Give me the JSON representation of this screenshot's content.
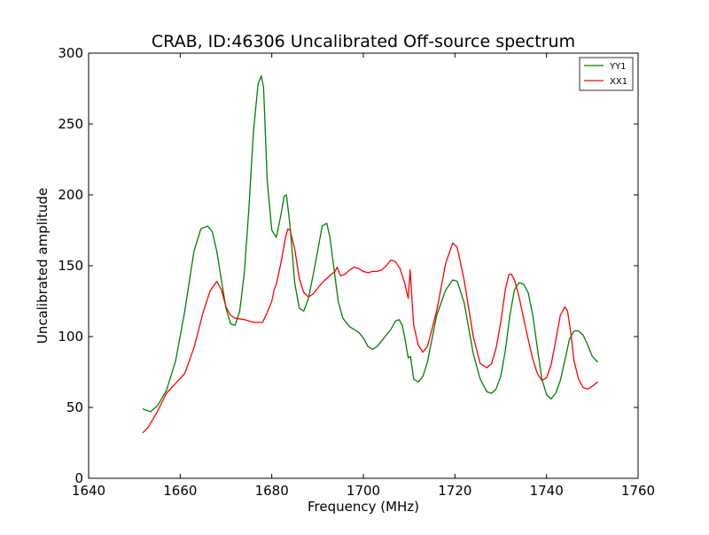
{
  "chart_data": {
    "type": "line",
    "title": "CRAB, ID:46306 Uncalibrated Off-source spectrum",
    "xlabel": "Frequency (MHz)",
    "ylabel": "Uncalibrated amplitude",
    "xlim": [
      1640,
      1760
    ],
    "ylim": [
      0,
      300
    ],
    "xticks": [
      1640,
      1660,
      1680,
      1700,
      1720,
      1740,
      1760
    ],
    "yticks": [
      0,
      50,
      100,
      150,
      200,
      250,
      300
    ],
    "grid": false,
    "legend_placement": "top-right",
    "series": [
      {
        "name": "YY1",
        "color": "#008000",
        "x": [
          1651.8,
          1653.5,
          1655,
          1657,
          1659,
          1661,
          1663,
          1664.5,
          1666,
          1667,
          1668,
          1669,
          1670,
          1671,
          1672,
          1673,
          1674,
          1675,
          1676,
          1677,
          1677.7,
          1678.2,
          1679,
          1680,
          1681,
          1682,
          1682.7,
          1683.2,
          1684,
          1685,
          1686,
          1687,
          1688,
          1689,
          1690,
          1691,
          1692,
          1692.7,
          1693.5,
          1694.5,
          1695.5,
          1697,
          1699,
          1700,
          1701,
          1702,
          1703,
          1704,
          1705,
          1706,
          1707,
          1707.8,
          1708.5,
          1709,
          1709.8,
          1710.3,
          1711,
          1712,
          1713,
          1714,
          1716,
          1718,
          1719.5,
          1720.5,
          1722,
          1724,
          1725.5,
          1727,
          1728,
          1729,
          1730,
          1731,
          1732,
          1733,
          1734,
          1735,
          1736,
          1737,
          1738,
          1739,
          1740,
          1741,
          1742,
          1743,
          1744,
          1745,
          1746,
          1747,
          1748,
          1749,
          1750,
          1751.2
        ],
        "y": [
          49,
          47,
          51,
          62,
          83,
          118,
          160,
          176,
          178,
          174,
          160,
          140,
          120,
          109,
          108,
          118,
          145,
          190,
          245,
          278,
          284,
          276,
          210,
          175,
          170,
          186,
          199,
          200,
          178,
          138,
          120,
          118,
          127,
          143,
          160,
          178,
          180,
          170,
          150,
          125,
          113,
          107,
          103,
          99,
          93,
          91,
          93,
          97,
          101,
          105,
          111,
          112,
          108,
          100,
          85,
          86,
          70,
          68,
          72,
          82,
          115,
          133,
          140,
          139,
          124,
          88,
          70,
          61,
          60,
          63,
          72,
          90,
          115,
          133,
          138,
          137,
          131,
          115,
          92,
          70,
          59,
          56,
          60,
          69,
          83,
          98,
          104,
          104,
          101,
          94,
          86,
          82
        ]
      },
      {
        "name": "XX1",
        "color": "#ff0000",
        "x": [
          1651.8,
          1653,
          1655,
          1657,
          1659,
          1661,
          1663,
          1665,
          1666.5,
          1668,
          1669,
          1670,
          1671,
          1672,
          1674,
          1676,
          1678,
          1679,
          1680,
          1680.5,
          1681,
          1682,
          1683,
          1683.5,
          1684,
          1685,
          1686,
          1687,
          1688,
          1689,
          1690,
          1691,
          1692,
          1693,
          1693.8,
          1694.3,
          1695,
          1696,
          1697,
          1698,
          1699,
          1700,
          1701,
          1702,
          1703,
          1704,
          1705,
          1706,
          1707,
          1708,
          1709,
          1709.8,
          1710.2,
          1711,
          1712,
          1713,
          1714,
          1716,
          1718,
          1719.5,
          1720.5,
          1722,
          1724,
          1725.5,
          1727,
          1728,
          1729,
          1730,
          1731,
          1731.8,
          1732.3,
          1733,
          1734,
          1735,
          1736,
          1737,
          1738,
          1739,
          1740,
          1741,
          1742,
          1743,
          1744,
          1744.6,
          1745.3,
          1746,
          1747,
          1748,
          1749,
          1750,
          1751.2
        ],
        "y": [
          32,
          36,
          47,
          60,
          67,
          74,
          92,
          117,
          132,
          139,
          133,
          121,
          115,
          113,
          112,
          110,
          110,
          117,
          125,
          133,
          137,
          152,
          170,
          176,
          175,
          162,
          141,
          131,
          128,
          130,
          134,
          138,
          141,
          144,
          146,
          149,
          143,
          144,
          147,
          149,
          148,
          146,
          145,
          146,
          146,
          147,
          150,
          154,
          153,
          148,
          138,
          127,
          147,
          108,
          94,
          89,
          93,
          118,
          152,
          166,
          163,
          140,
          100,
          81,
          78,
          81,
          92,
          110,
          133,
          144,
          144,
          140,
          128,
          113,
          98,
          84,
          74,
          69,
          71,
          80,
          97,
          115,
          121,
          118,
          103,
          83,
          70,
          64,
          63,
          65,
          68
        ]
      }
    ]
  }
}
